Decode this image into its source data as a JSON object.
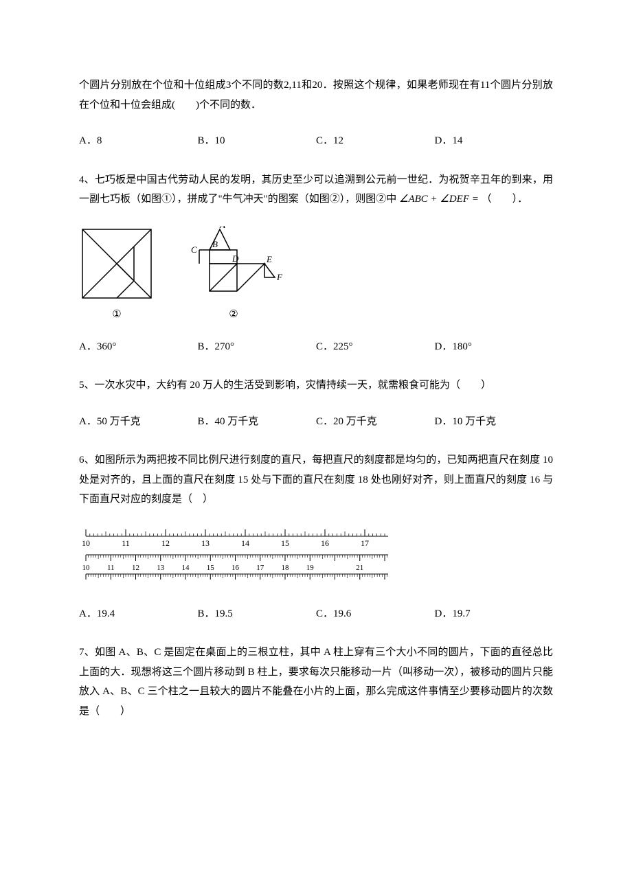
{
  "q3_continuation": {
    "text": "个圆片分别放在个位和十位组成3个不同的数2,11和20．按照这个规律，如果老师现在有11个圆片分别放在个位和十位会组成(　　)个不同的数．",
    "options": {
      "a": "A．8",
      "b": "B．10",
      "c": "C．12",
      "d": "D．14"
    }
  },
  "q4": {
    "text_part1": "4、七巧板是中国古代劳动人民的发明，其历史至少可以追溯到公元前一世纪．为祝贺辛丑年的到来，用一副七巧板（如图①），拼成了\"牛气冲天\"的图案（如图②），则图②中",
    "angle_expr": "∠ABC + ∠DEF =",
    "text_part2": "（　　）．",
    "figure": {
      "label1": "①",
      "label2": "②",
      "points": {
        "A": "A",
        "B": "B",
        "C": "C",
        "D": "D",
        "E": "E",
        "F": "F"
      }
    },
    "options": {
      "a": "A．360°",
      "b": "B．270°",
      "c": "C．225°",
      "d": "D．180°"
    }
  },
  "q5": {
    "text": "5、一次水灾中，大约有 20 万人的生活受到影响，灾情持续一天，就需粮食可能为（　　）",
    "options": {
      "a": "A．50 万千克",
      "b": "B．40 万千克",
      "c": "C．20 万千克",
      "d": "D．10 万千克"
    }
  },
  "q6": {
    "text": "6、如图所示为两把按不同比例尺进行刻度的直尺，每把直尺的刻度都是均匀的，已知两把直尺在刻度 10 处是对齐的，且上面的直尺在刻度 15 处与下面的直尺在刻度 18 处也刚好对齐，则上面直尺的刻度 16 与下面直尺对应的刻度是（　）",
    "ruler": {
      "top_labels": [
        "10",
        "11",
        "12",
        "13",
        "14",
        "15",
        "16",
        "17"
      ],
      "bottom_labels": [
        "10",
        "11",
        "12",
        "13",
        "14",
        "15",
        "16",
        "17",
        "18",
        "19",
        "21"
      ],
      "top_start": 10,
      "top_end": 17,
      "bottom_start": 10,
      "bottom_end": 21,
      "alignment_point": 10
    },
    "options": {
      "a": "A．19.4",
      "b": "B．19.5",
      "c": "C．19.6",
      "d": "D．19.7"
    }
  },
  "q7": {
    "text": "7、如图 A、B、C 是固定在桌面上的三根立柱，其中 A 柱上穿有三个大小不同的圆片，下面的直径总比上面的大．现想将这三个圆片移动到 B 柱上，要求每次只能移动一片（叫移动一次），被移动的圆片只能放入 A、B、C 三个柱之一且较大的圆片不能叠在小片的上面，那么完成这件事情至少要移动圆片的次数是（　　）"
  }
}
